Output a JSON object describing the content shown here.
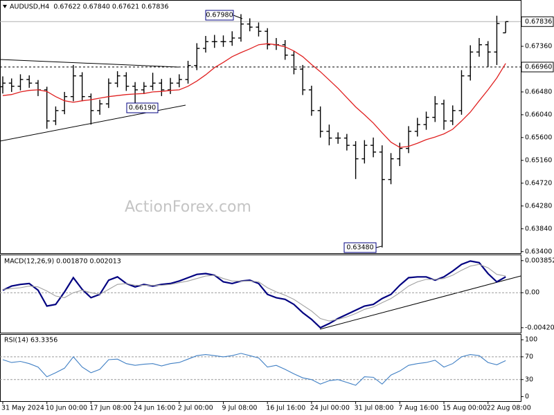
{
  "chart_data": [
    {
      "type": "ohlc",
      "title": "AUDUSD,H4  0.67622 0.67840 0.67621 0.67836",
      "watermark": "ActionForex.com",
      "color": "#000000",
      "values": [
        [
          0.6658,
          0.6678,
          0.6645,
          0.6665
        ],
        [
          0.6665,
          0.6674,
          0.6648,
          0.6659
        ],
        [
          0.6659,
          0.6682,
          0.6651,
          0.6672
        ],
        [
          0.6672,
          0.668,
          0.6656,
          0.6665
        ],
        [
          0.6665,
          0.6671,
          0.664,
          0.6652
        ],
        [
          0.6652,
          0.6658,
          0.6577,
          0.6592
        ],
        [
          0.6592,
          0.662,
          0.6584,
          0.6612
        ],
        [
          0.6612,
          0.6648,
          0.6605,
          0.6639
        ],
        [
          0.6639,
          0.67,
          0.663,
          0.6679
        ],
        [
          0.6679,
          0.6686,
          0.663,
          0.6639
        ],
        [
          0.6639,
          0.6645,
          0.6585,
          0.6612
        ],
        [
          0.6612,
          0.6633,
          0.6604,
          0.6625
        ],
        [
          0.6625,
          0.6674,
          0.6617,
          0.6665
        ],
        [
          0.6665,
          0.6688,
          0.6657,
          0.6679
        ],
        [
          0.6679,
          0.6686,
          0.665,
          0.6659
        ],
        [
          0.6659,
          0.6667,
          0.6619,
          0.6652
        ],
        [
          0.6652,
          0.6667,
          0.6644,
          0.6659
        ],
        [
          0.6659,
          0.6685,
          0.6651,
          0.6665
        ],
        [
          0.6665,
          0.6673,
          0.664,
          0.6652
        ],
        [
          0.6652,
          0.6675,
          0.6644,
          0.6665
        ],
        [
          0.6665,
          0.6682,
          0.6657,
          0.6672
        ],
        [
          0.6672,
          0.6708,
          0.6664,
          0.6699
        ],
        [
          0.6699,
          0.6742,
          0.669,
          0.6732
        ],
        [
          0.6732,
          0.6756,
          0.6724,
          0.6745
        ],
        [
          0.6745,
          0.6758,
          0.6733,
          0.6745
        ],
        [
          0.6745,
          0.6757,
          0.6735,
          0.6745
        ],
        [
          0.6745,
          0.6765,
          0.6737,
          0.6752
        ],
        [
          0.6752,
          0.6798,
          0.6745,
          0.6779
        ],
        [
          0.6779,
          0.679,
          0.6765,
          0.6773
        ],
        [
          0.6773,
          0.6782,
          0.6755,
          0.6765
        ],
        [
          0.6765,
          0.6771,
          0.673,
          0.6739
        ],
        [
          0.6739,
          0.6752,
          0.6729,
          0.6739
        ],
        [
          0.6739,
          0.6748,
          0.671,
          0.6719
        ],
        [
          0.6719,
          0.6727,
          0.6682,
          0.6692
        ],
        [
          0.6692,
          0.67,
          0.6642,
          0.6652
        ],
        [
          0.6652,
          0.666,
          0.6602,
          0.6612
        ],
        [
          0.6612,
          0.662,
          0.656,
          0.6572
        ],
        [
          0.6572,
          0.6585,
          0.6545,
          0.6559
        ],
        [
          0.6559,
          0.657,
          0.6548,
          0.6559
        ],
        [
          0.6559,
          0.6567,
          0.6535,
          0.6545
        ],
        [
          0.6545,
          0.6553,
          0.648,
          0.6519
        ],
        [
          0.6519,
          0.6555,
          0.651,
          0.6545
        ],
        [
          0.6545,
          0.656,
          0.6522,
          0.6532
        ],
        [
          0.6532,
          0.6545,
          0.6348,
          0.6479
        ],
        [
          0.6479,
          0.653,
          0.647,
          0.6519
        ],
        [
          0.6519,
          0.655,
          0.6505,
          0.6539
        ],
        [
          0.6539,
          0.6582,
          0.653,
          0.6572
        ],
        [
          0.6572,
          0.6598,
          0.6562,
          0.6585
        ],
        [
          0.6585,
          0.661,
          0.6575,
          0.6599
        ],
        [
          0.6599,
          0.664,
          0.659,
          0.6625
        ],
        [
          0.6625,
          0.6633,
          0.6575,
          0.6592
        ],
        [
          0.6592,
          0.6622,
          0.6584,
          0.6612
        ],
        [
          0.6612,
          0.669,
          0.6604,
          0.6679
        ],
        [
          0.6679,
          0.6738,
          0.667,
          0.6725
        ],
        [
          0.6725,
          0.6752,
          0.6716,
          0.6739
        ],
        [
          0.6739,
          0.6746,
          0.6696,
          0.6725
        ],
        [
          0.6725,
          0.6795,
          0.67,
          0.678
        ],
        [
          0.6762,
          0.6784,
          0.6762,
          0.67836
        ]
      ],
      "moving_average": {
        "color": "#e02020",
        "values": [
          0.6641,
          0.6643,
          0.6648,
          0.6651,
          0.6652,
          0.6649,
          0.6639,
          0.6631,
          0.6628,
          0.6631,
          0.6633,
          0.6636,
          0.6639,
          0.6641,
          0.6643,
          0.6644,
          0.6645,
          0.6648,
          0.6649,
          0.6651,
          0.6652,
          0.6659,
          0.6669,
          0.6681,
          0.6695,
          0.6705,
          0.6716,
          0.6724,
          0.6731,
          0.6739,
          0.6741,
          0.6739,
          0.6735,
          0.6727,
          0.6716,
          0.6701,
          0.6687,
          0.6671,
          0.6655,
          0.6637,
          0.6619,
          0.6604,
          0.6588,
          0.6569,
          0.6551,
          0.6541,
          0.6543,
          0.6549,
          0.6556,
          0.6561,
          0.6567,
          0.6576,
          0.6592,
          0.6609,
          0.6631,
          0.6652,
          0.6675,
          0.6703
        ]
      },
      "ylim": [
        0.6337,
        0.682
      ],
      "yticks": [
        {
          "value": 0.6736,
          "label": "0.67360"
        },
        {
          "value": 0.6648,
          "label": "0.66480"
        },
        {
          "value": 0.6604,
          "label": "0.66040"
        },
        {
          "value": 0.656,
          "label": "0.65600"
        },
        {
          "value": 0.6516,
          "label": "0.65160"
        },
        {
          "value": 0.6472,
          "label": "0.64720"
        },
        {
          "value": 0.6428,
          "label": "0.64280"
        },
        {
          "value": 0.6384,
          "label": "0.63840"
        },
        {
          "value": 0.634,
          "label": "0.63400"
        }
      ],
      "last_price": {
        "value": 0.67836,
        "label": "0.67836"
      },
      "levels": [
        {
          "value": 0.6696,
          "label": "0.66960"
        }
      ],
      "annotations": [
        "0.67980",
        "0.66190",
        "0.63480"
      ]
    },
    {
      "type": "line",
      "title": "MACD(12,26,9) 0.001870 0.002013",
      "series": [
        {
          "color": "#000080",
          "values": [
            0.0003,
            0.0008,
            0.001,
            0.0011,
            0.0003,
            -0.0016,
            -0.0014,
            0.0001,
            0.0018,
            0.0004,
            -0.0006,
            -0.0002,
            0.0015,
            0.0019,
            0.0011,
            0.0007,
            0.001,
            0.0008,
            0.001,
            0.0011,
            0.0014,
            0.0018,
            0.0022,
            0.0023,
            0.0021,
            0.0013,
            0.0011,
            0.0014,
            0.0015,
            0.0011,
            -0.0002,
            -0.0006,
            -0.0008,
            -0.0014,
            -0.0024,
            -0.0032,
            -0.0042,
            -0.0037,
            -0.0031,
            -0.0026,
            -0.0021,
            -0.0016,
            -0.0014,
            -0.0007,
            -0.0002,
            0.0009,
            0.0018,
            0.0019,
            0.0019,
            0.0015,
            0.0019,
            0.0026,
            0.0034,
            0.0038,
            0.0036,
            0.0023,
            0.0013,
            0.0019
          ]
        },
        {
          "color": "#a0a0a0",
          "values": [
            0.0004,
            0.0005,
            0.0006,
            0.0008,
            0.0007,
            0.0002,
            -0.0004,
            -0.0006,
            0,
            0.0003,
            0,
            -0.0002,
            0.0004,
            0.001,
            0.0011,
            0.0009,
            0.0009,
            0.0009,
            0.0009,
            0.001,
            0.0012,
            0.0014,
            0.0017,
            0.002,
            0.0021,
            0.0017,
            0.0014,
            0.0014,
            0.0014,
            0.0013,
            0.0006,
            0.0001,
            -0.0003,
            -0.0008,
            -0.0015,
            -0.0022,
            -0.0031,
            -0.0034,
            -0.0032,
            -0.0029,
            -0.0025,
            -0.002,
            -0.0017,
            -0.0012,
            -0.0007,
            0,
            0.0008,
            0.0013,
            0.0016,
            0.0016,
            0.0017,
            0.0021,
            0.0027,
            0.0032,
            0.0034,
            0.003,
            0.0022,
            0.002
          ]
        }
      ],
      "ylim": [
        -0.0048,
        0.0045
      ],
      "yticks": [
        0.003852,
        {
          "value": 0,
          "label": "0.00"
        },
        -0.004204
      ],
      "levels": [
        0
      ]
    },
    {
      "type": "line",
      "title": "RSI(14) 63.3356",
      "series": [
        {
          "color": "#3f7fc4",
          "values": [
            65,
            60,
            62,
            58,
            52,
            35,
            42,
            50,
            70,
            52,
            42,
            48,
            65,
            66,
            58,
            55,
            57,
            58,
            54,
            58,
            60,
            66,
            72,
            74,
            72,
            70,
            72,
            76,
            72,
            68,
            52,
            55,
            48,
            40,
            33,
            30,
            22,
            28,
            30,
            25,
            20,
            35,
            34,
            22,
            38,
            45,
            55,
            58,
            60,
            64,
            52,
            58,
            70,
            74,
            72,
            60,
            56,
            63.3
          ]
        }
      ],
      "ylim": [
        -8,
        110
      ],
      "yticks": [
        100,
        70,
        30,
        0
      ],
      "levels": [
        70,
        30
      ],
      "categories": [
        "31 May 2024",
        null,
        null,
        null,
        null,
        "10 Jun 00:00",
        null,
        null,
        null,
        null,
        "17 Jun 08:00",
        null,
        null,
        null,
        null,
        "24 Jun 16:00",
        null,
        null,
        null,
        null,
        "2 Jul 00:00",
        null,
        null,
        null,
        null,
        "9 Jul 08:00",
        null,
        null,
        null,
        null,
        "16 Jul 16:00",
        null,
        null,
        null,
        null,
        "24 Jul 00:00",
        null,
        null,
        null,
        null,
        "31 Jul 08:00",
        null,
        null,
        null,
        null,
        "7 Aug 16:00",
        null,
        null,
        null,
        null,
        "15 Aug 00:00",
        null,
        null,
        null,
        null,
        "22 Aug 08:00",
        null,
        null
      ]
    }
  ]
}
